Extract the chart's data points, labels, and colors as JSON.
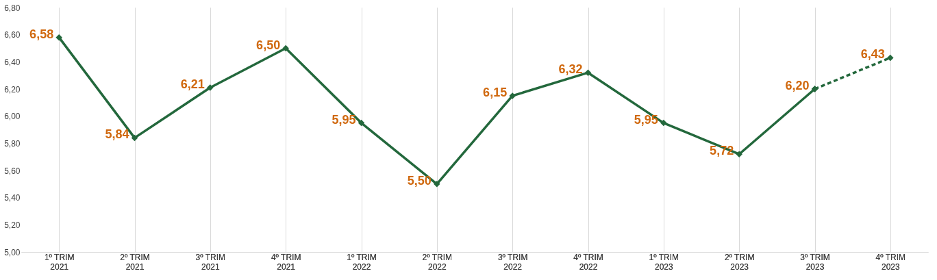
{
  "chart_data": {
    "type": "line",
    "categories": [
      "1º TRIM\n2021",
      "2º TRIM\n2021",
      "3º TRIM\n2021",
      "4º TRIM\n2021",
      "1º TRIM\n2022",
      "2º TRIM\n2022",
      "3º TRIM\n2022",
      "4º TRIM\n2022",
      "1º TRIM\n2023",
      "2º TRIM\n2023",
      "3º TRIM\n2023",
      "4º TRIM\n2023"
    ],
    "series": [
      {
        "color": "#23683c",
        "line_style": "solid",
        "values": [
          6.58,
          5.84,
          6.21,
          6.5,
          5.95,
          5.5,
          6.15,
          6.32,
          5.95,
          5.72,
          6.2,
          null
        ],
        "value_labels": [
          "6,58",
          "5,84",
          "6,21",
          "6,50",
          "5,95",
          "5,50",
          "6,15",
          "6,32",
          "5,95",
          "5,72",
          "6,20",
          null
        ]
      },
      {
        "color": "#23683c",
        "line_style": "dashed",
        "values": [
          null,
          null,
          null,
          null,
          null,
          null,
          null,
          null,
          null,
          null,
          6.2,
          6.43
        ],
        "value_labels": [
          null,
          null,
          null,
          null,
          null,
          null,
          null,
          null,
          null,
          null,
          null,
          "6,43"
        ]
      }
    ],
    "ylim": [
      5.0,
      6.8
    ],
    "yticks": [
      {
        "value": 5.0,
        "label": "5,00"
      },
      {
        "value": 5.2,
        "label": "5,20"
      },
      {
        "value": 5.4,
        "label": "5,40"
      },
      {
        "value": 5.6,
        "label": "5,60"
      },
      {
        "value": 5.8,
        "label": "5,80"
      },
      {
        "value": 6.0,
        "label": "6,00"
      },
      {
        "value": 6.2,
        "label": "6,20"
      },
      {
        "value": 6.4,
        "label": "6,40"
      },
      {
        "value": 6.6,
        "label": "6,60"
      },
      {
        "value": 6.8,
        "label": "6,80"
      }
    ],
    "grid": "x",
    "marker": "diamond"
  }
}
